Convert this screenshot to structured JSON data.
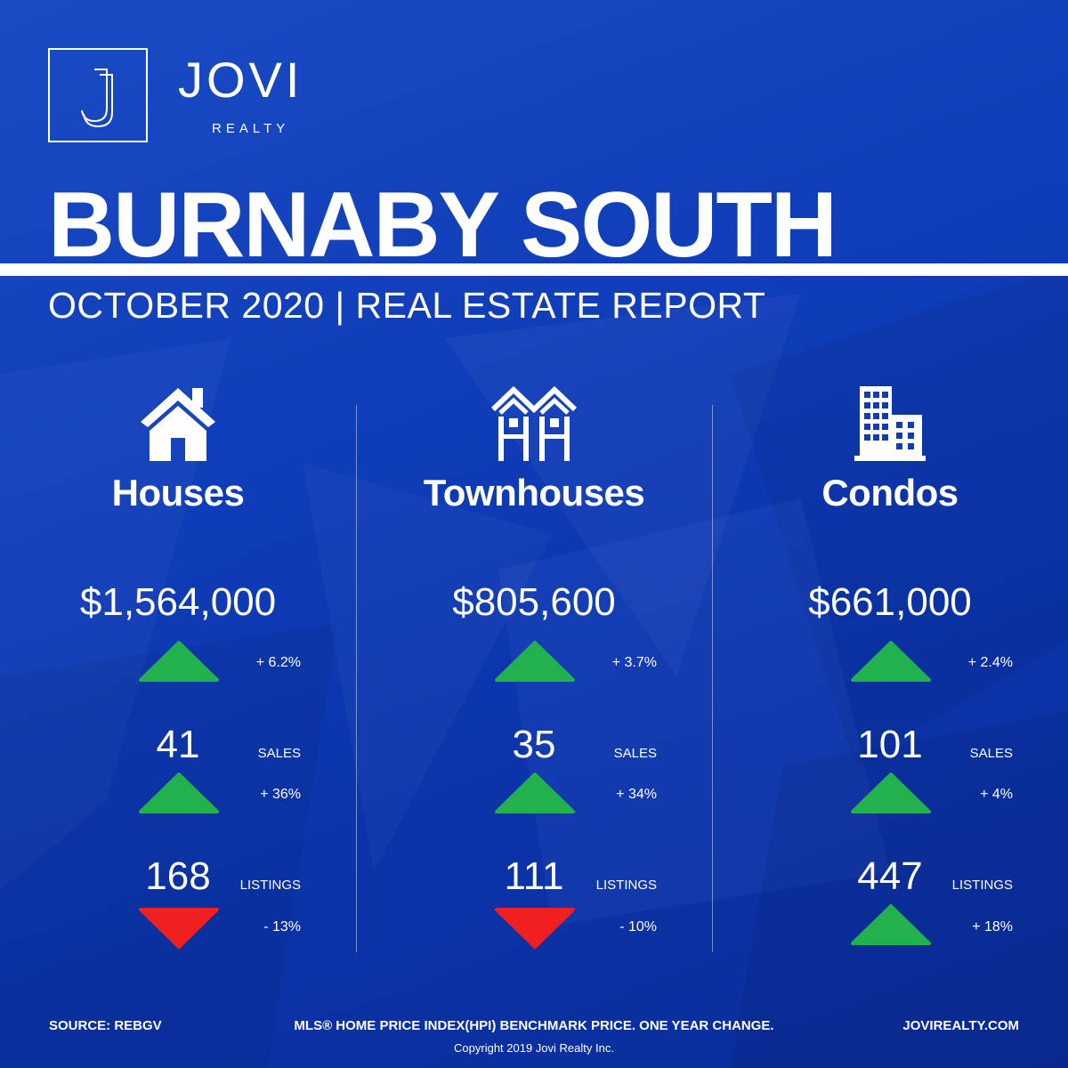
{
  "brand": {
    "name": "JOVI",
    "sub": "REALTY",
    "logo_letter": "J"
  },
  "title": "BURNABY SOUTH",
  "subtitle": "OCTOBER 2020 | REAL ESTATE REPORT",
  "colors": {
    "up": "#22b14c",
    "down": "#f02020",
    "accent": "#ffffff"
  },
  "columns": [
    {
      "icon": "house-icon",
      "name": "Houses",
      "price": "$1,564,000",
      "price_change": "+ 6.2%",
      "price_trend": "up",
      "sales": "41",
      "sales_label": "SALES",
      "sales_change": "+ 36%",
      "sales_trend": "up",
      "listings": "168",
      "listings_label": "LISTINGS",
      "listings_change": "- 13%",
      "listings_trend": "down"
    },
    {
      "icon": "townhouse-icon",
      "name": "Townhouses",
      "price": "$805,600",
      "price_change": "+ 3.7%",
      "price_trend": "up",
      "sales": "35",
      "sales_label": "SALES",
      "sales_change": "+ 34%",
      "sales_trend": "up",
      "listings": "111",
      "listings_label": "LISTINGS",
      "listings_change": "- 10%",
      "listings_trend": "down"
    },
    {
      "icon": "condo-building-icon",
      "name": "Condos",
      "price": "$661,000",
      "price_change": "+ 2.4%",
      "price_trend": "up",
      "sales": "101",
      "sales_label": "SALES",
      "sales_change": "+ 4%",
      "sales_trend": "up",
      "listings": "447",
      "listings_label": "LISTINGS",
      "listings_change": "+ 18%",
      "listings_trend": "up"
    }
  ],
  "footer": {
    "source": "SOURCE:  REBGV",
    "note": "MLS® HOME PRICE INDEX(HPI) BENCHMARK PRICE. ONE YEAR CHANGE.",
    "website": "JOVIREALTY.COM",
    "copyright": "Copyright 2019 Jovi Realty Inc."
  }
}
